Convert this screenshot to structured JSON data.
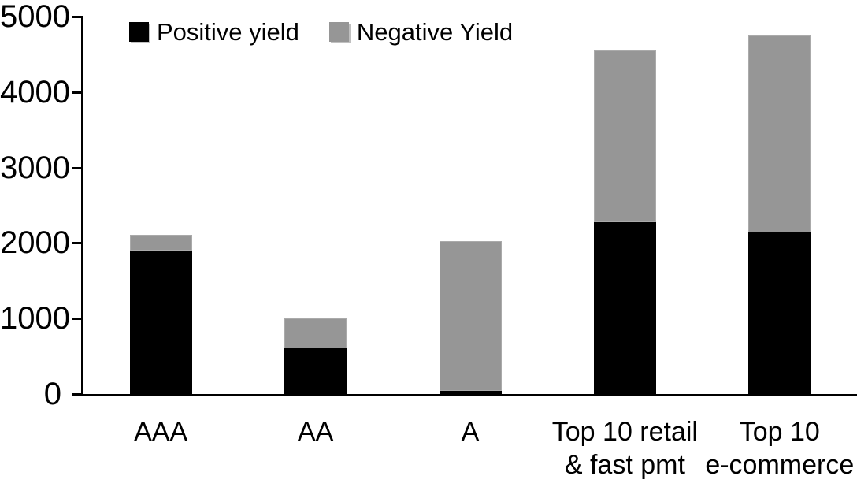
{
  "chart_data": {
    "type": "bar",
    "stacked": true,
    "title": "",
    "xlabel": "",
    "ylabel": "",
    "categories": [
      "AAA",
      "AA",
      "A",
      "Top 10 retail\n& fast pmt",
      "Top 10\ne-commerce"
    ],
    "series": [
      {
        "name": "Positive yield",
        "color": "#000000",
        "values": [
          1900,
          610,
          40,
          2280,
          2140
        ]
      },
      {
        "name": "Negative Yield",
        "color": "#969696",
        "values": [
          210,
          390,
          1990,
          2270,
          2610
        ]
      }
    ],
    "totals": [
      2110,
      1000,
      2030,
      4550,
      4750
    ],
    "ylim": [
      0,
      5000
    ],
    "yticks": [
      0,
      1000,
      2000,
      3000,
      4000,
      5000
    ],
    "grid": false,
    "legend_position": "top"
  },
  "colors": {
    "positive": "#000000",
    "negative": "#969696",
    "axis": "#000000",
    "background": "#ffffff"
  }
}
